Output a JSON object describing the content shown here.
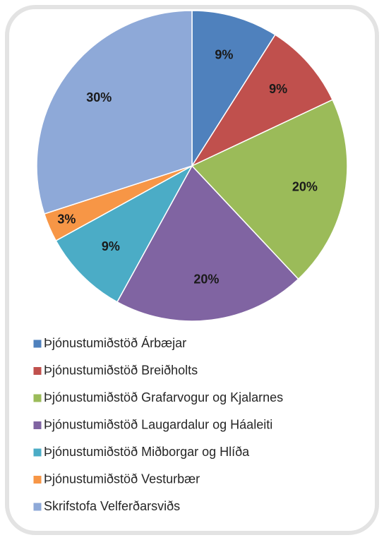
{
  "chart_data": {
    "type": "pie",
    "categories": [
      "Þjónustumiðstöð Árbæjar",
      "Þjónustumiðstöð Breiðholts",
      "Þjónustumiðstöð Grafarvogur og Kjalarnes",
      "Þjónustumiðstöð Laugardalur og Háaleiti",
      "Þjónustumiðstöð Miðborgar og Hlíða",
      "Þjónustumiðstöð Vesturbær",
      "Skrifstofa Velferðarsviðs"
    ],
    "values": [
      9,
      9,
      20,
      20,
      9,
      3,
      30
    ],
    "value_labels": [
      "9%",
      "9%",
      "20%",
      "20%",
      "9%",
      "3%",
      "30%"
    ],
    "colors": [
      "#4f81bd",
      "#c0504d",
      "#9bbb59",
      "#8064a2",
      "#4bacc6",
      "#f79646",
      "#8ea9d8"
    ],
    "legend": "bottom"
  }
}
